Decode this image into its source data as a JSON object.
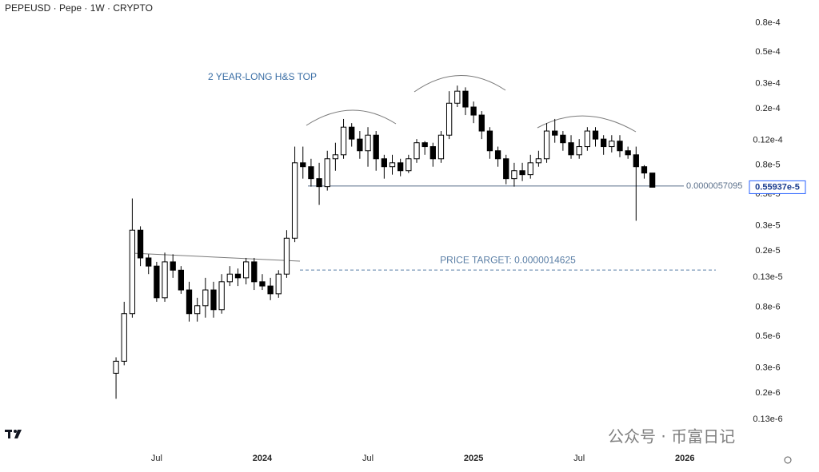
{
  "chart_data": {
    "type": "candlestick",
    "title": "PEPEUSD · Pepe · 1W · CRYPTO",
    "annotation": "2 YEAR-LONG H&S TOP",
    "watermark": "公众号 · 币富日记",
    "log_scale": true,
    "grid": false,
    "up_color": "#ffffff",
    "down_color": "#000000",
    "wick_color": "#000000",
    "categories": [
      null,
      null,
      null,
      null,
      null,
      "Jul",
      null,
      null,
      null,
      null,
      null,
      null,
      null,
      null,
      null,
      null,
      null,
      null,
      "2024",
      null,
      null,
      null,
      null,
      null,
      null,
      null,
      null,
      null,
      null,
      null,
      null,
      "Jul",
      null,
      null,
      null,
      null,
      null,
      null,
      null,
      null,
      null,
      null,
      null,
      null,
      "2025",
      null,
      null,
      null,
      null,
      null,
      null,
      null,
      null,
      null,
      null,
      null,
      null,
      "Jul",
      null,
      null,
      null,
      null,
      null,
      null,
      null,
      null,
      null,
      null,
      null,
      null,
      "2026",
      null
    ],
    "open": [
      2.75e-07,
      3.34e-07,
      7.22e-07,
      2.79e-06,
      1.78e-06,
      1.56e-06,
      9.34e-07,
      1.67e-06,
      1.46e-06,
      1.06e-06,
      7.22e-07,
      8.21e-07,
      1.06e-06,
      7.7e-07,
      1.21e-06,
      1.37e-06,
      1.29e-06,
      1.67e-06,
      1.21e-06,
      1.13e-06,
      9.96e-07,
      1.37e-06,
      2.45e-06,
      8.31e-06,
      7.8e-06,
      6.43e-06,
      5.65e-06,
      8.87e-06,
      9.46e-06,
      1.48e-05,
      1.22e-05,
      1.01e-05,
      1.3e-05,
      8.87e-06,
      7.8e-06,
      8.31e-06,
      7.31e-06,
      8.87e-06,
      1.15e-05,
      1.08e-05,
      8.87e-06,
      1.3e-05,
      2.18e-05,
      2.65e-05,
      2.05e-05,
      1.8e-05,
      1.39e-05,
      1.01e-05,
      8.87e-06,
      6.43e-06,
      7.31e-06,
      6.86e-06,
      8.31e-06,
      8.87e-06,
      1.39e-05,
      1.3e-05,
      1.15e-05,
      9.46e-06,
      1.08e-05,
      1.39e-05,
      1.22e-05,
      1.08e-05,
      1.18e-05,
      1.01e-05,
      9.46e-06,
      7.8e-06,
      7.04e-06,
      null,
      null,
      null,
      null,
      null
    ],
    "high": [
      3.56e-07,
      8.75e-07,
      4.66e-06,
      2.97e-06,
      1.89e-06,
      1.67e-06,
      1.94e-06,
      1.89e-06,
      1.56e-06,
      1.21e-06,
      9.34e-07,
      1.29e-06,
      1.21e-06,
      1.37e-06,
      1.56e-06,
      1.5e-06,
      1.78e-06,
      1.78e-06,
      1.37e-06,
      1.29e-06,
      1.46e-06,
      2.79e-06,
      1.08e-05,
      1.08e-05,
      8.87e-06,
      8.31e-06,
      1.01e-05,
      1.15e-05,
      1.69e-05,
      1.58e-05,
      1.39e-05,
      1.48e-05,
      1.39e-05,
      9.46e-06,
      9.46e-06,
      8.87e-06,
      9.46e-06,
      1.22e-05,
      1.18e-05,
      1.15e-05,
      1.39e-05,
      2.65e-05,
      2.9e-05,
      2.82e-05,
      2.24e-05,
      1.92e-05,
      1.48e-05,
      1.08e-05,
      9.46e-06,
      8.31e-06,
      8.31e-06,
      9.46e-06,
      1.01e-05,
      1.58e-05,
      1.69e-05,
      1.39e-05,
      1.3e-05,
      1.22e-05,
      1.48e-05,
      1.48e-05,
      1.3e-05,
      1.3e-05,
      1.3e-05,
      1.08e-05,
      1.08e-05,
      8e-06,
      7.04e-06,
      null,
      null,
      null,
      null,
      null
    ],
    "low": [
      1.82e-07,
      3.13e-07,
      6.77e-07,
      1.56e-06,
      1.37e-06,
      8.75e-07,
      8.75e-07,
      1.29e-06,
      9.96e-07,
      6.35e-07,
      6.35e-07,
      6.77e-07,
      6.77e-07,
      7.22e-07,
      1.13e-06,
      1.13e-06,
      1.16e-06,
      1.06e-06,
      1.06e-06,
      8.98e-07,
      9.34e-07,
      1.29e-06,
      2.3e-06,
      6.43e-06,
      5.65e-06,
      4.2e-06,
      5.3e-06,
      7.31e-06,
      8.87e-06,
      1.08e-05,
      8.87e-06,
      7.8e-06,
      7.31e-06,
      6.43e-06,
      6.86e-06,
      6.68e-06,
      7.04e-06,
      8.31e-06,
      9.46e-06,
      7.8e-06,
      8.31e-06,
      1.22e-05,
      2.05e-05,
      1.8e-05,
      1.58e-05,
      1.22e-05,
      8.87e-06,
      7.8e-06,
      5.87e-06,
      5.65e-06,
      6.18e-06,
      6.43e-06,
      7.8e-06,
      8.31e-06,
      1.15e-05,
      1.01e-05,
      8.87e-06,
      8.87e-06,
      1.01e-05,
      1.08e-05,
      9.46e-06,
      9.83e-06,
      9.1e-06,
      8.87e-06,
      3.25e-06,
      6.43e-06,
      5.58e-06,
      null,
      null,
      null,
      null,
      null
    ],
    "close": [
      3.34e-07,
      7.22e-07,
      2.79e-06,
      1.78e-06,
      1.56e-06,
      9.34e-07,
      1.67e-06,
      1.46e-06,
      1.06e-06,
      7.22e-07,
      8.21e-07,
      1.06e-06,
      7.7e-07,
      1.21e-06,
      1.37e-06,
      1.29e-06,
      1.67e-06,
      1.21e-06,
      1.13e-06,
      9.96e-07,
      1.37e-06,
      2.45e-06,
      8.31e-06,
      7.8e-06,
      6.43e-06,
      5.65e-06,
      8.87e-06,
      9.46e-06,
      1.48e-05,
      1.22e-05,
      1.01e-05,
      1.3e-05,
      8.87e-06,
      7.8e-06,
      8.31e-06,
      7.31e-06,
      8.87e-06,
      1.15e-05,
      1.08e-05,
      8.87e-06,
      1.3e-05,
      2.18e-05,
      2.65e-05,
      2.05e-05,
      1.8e-05,
      1.39e-05,
      1.01e-05,
      8.87e-06,
      6.43e-06,
      7.31e-06,
      6.86e-06,
      8.31e-06,
      8.87e-06,
      1.39e-05,
      1.3e-05,
      1.15e-05,
      9.46e-06,
      1.08e-05,
      1.39e-05,
      1.22e-05,
      1.08e-05,
      1.18e-05,
      1.01e-05,
      9.46e-06,
      7.8e-06,
      7.04e-06,
      5.5937e-06,
      null,
      null,
      null,
      null,
      null
    ],
    "last_price": {
      "value": 5.5937e-06,
      "label": "0.55937e-5"
    },
    "neckline": {
      "value": 5.7095e-06,
      "label": "0.0000057095",
      "color": "#5a6f8a"
    },
    "price_target": {
      "value": 1.4625e-06,
      "label": "PRICE TARGET: 0.0000014625",
      "color": "#5b7fa6"
    },
    "ylim": [
      8.3e-08,
      0.000116
    ],
    "yticks": [
      {
        "value": 8e-05,
        "label": "0.8e-4"
      },
      {
        "value": 5e-05,
        "label": "0.5e-4"
      },
      {
        "value": 3e-05,
        "label": "0.3e-4"
      },
      {
        "value": 2e-05,
        "label": "0.2e-4"
      },
      {
        "value": 1.2e-05,
        "label": "0.12e-4"
      },
      {
        "value": 8e-06,
        "label": "0.8e-5"
      },
      {
        "value": 5e-06,
        "label": "0.5e-5"
      },
      {
        "value": 3e-06,
        "label": "0.3e-5"
      },
      {
        "value": 2e-06,
        "label": "0.2e-5"
      },
      {
        "value": 1.3e-06,
        "label": "0.13e-5"
      },
      {
        "value": 8e-07,
        "label": "0.8e-6"
      },
      {
        "value": 5e-07,
        "label": "0.5e-6"
      },
      {
        "value": 3e-07,
        "label": "0.3e-6"
      },
      {
        "value": 2e-07,
        "label": "0.2e-6"
      },
      {
        "value": 1.3e-07,
        "label": "0.13e-6"
      }
    ]
  }
}
